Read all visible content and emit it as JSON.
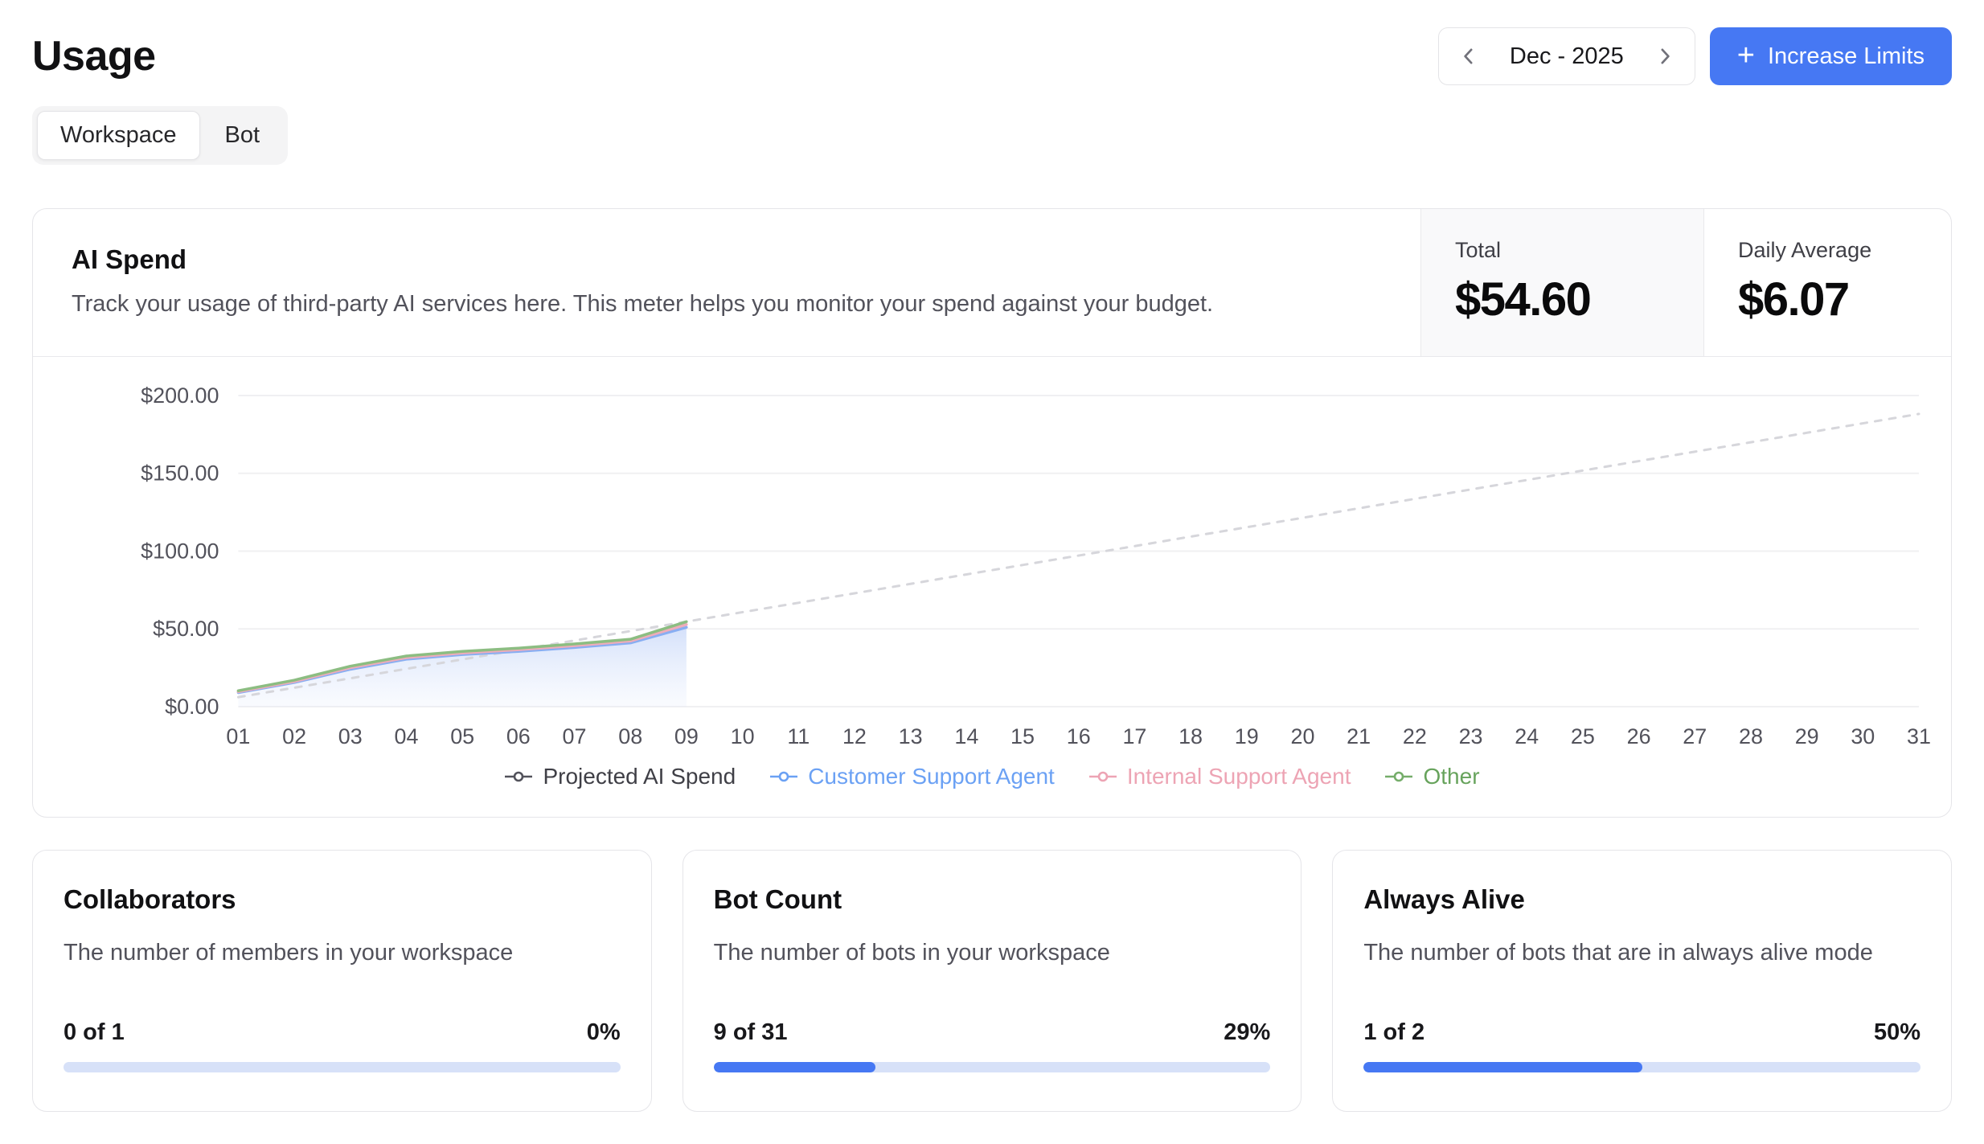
{
  "page": {
    "title": "Usage"
  },
  "colors": {
    "accent": "#4678f3",
    "progress_track": "#d7e1f8",
    "card_border": "#e5e5e9",
    "muted_text": "#52525b",
    "stat_bg": "#f9f9fa"
  },
  "header": {
    "date_nav": {
      "label": "Dec - 2025",
      "prev_icon": "chevron-left",
      "next_icon": "chevron-right"
    },
    "increase_limits": {
      "label": "Increase Limits",
      "plus_icon": "+"
    }
  },
  "tabs": [
    {
      "label": "Workspace",
      "active": true
    },
    {
      "label": "Bot",
      "active": false
    }
  ],
  "ai_spend": {
    "title": "AI Spend",
    "description": "Track your usage of third-party AI services here. This meter helps you monitor your spend against your budget.",
    "total_label": "Total",
    "total_value": "$54.60",
    "daily_avg_label": "Daily Average",
    "daily_avg_value": "$6.07"
  },
  "chart_data": {
    "type": "line",
    "title": "AI Spend",
    "xlabel": "",
    "ylabel": "",
    "ylim": [
      0,
      200
    ],
    "grid": true,
    "legend_position": "bottom",
    "x_labels": [
      "01",
      "02",
      "03",
      "04",
      "05",
      "06",
      "07",
      "08",
      "09",
      "10",
      "11",
      "12",
      "13",
      "14",
      "15",
      "16",
      "17",
      "18",
      "19",
      "20",
      "21",
      "22",
      "23",
      "24",
      "25",
      "26",
      "27",
      "28",
      "29",
      "30",
      "31"
    ],
    "y_ticks": [
      {
        "value": 0,
        "label": "$0.00"
      },
      {
        "value": 50,
        "label": "$50.00"
      },
      {
        "value": 100,
        "label": "$100.00"
      },
      {
        "value": 150,
        "label": "$150.00"
      },
      {
        "value": 200,
        "label": "$200.00"
      }
    ],
    "series": [
      {
        "name": "Projected AI Spend",
        "style": "dashed",
        "color": "#d6d6db",
        "values": [
          6.07,
          12.14,
          18.21,
          24.28,
          30.35,
          36.42,
          42.49,
          48.56,
          54.63,
          60.7,
          66.77,
          72.84,
          78.91,
          84.98,
          91.05,
          97.12,
          103.19,
          109.26,
          115.33,
          121.4,
          127.47,
          133.54,
          139.61,
          145.68,
          151.75,
          157.82,
          163.89,
          169.96,
          176.03,
          182.1,
          188.17
        ]
      },
      {
        "name": "Customer Support Agent",
        "style": "solid",
        "color": "#88aef2",
        "area": true,
        "values": [
          9.0,
          15.5,
          24.0,
          30.5,
          33.5,
          35.5,
          38.0,
          41.0,
          51.0
        ]
      },
      {
        "name": "Internal Support Agent",
        "style": "solid",
        "color": "#efacba",
        "values": [
          9.6,
          16.2,
          25.0,
          31.5,
          34.5,
          36.6,
          39.2,
          42.2,
          52.8
        ]
      },
      {
        "name": "Other",
        "style": "solid",
        "color": "#8cbd82",
        "values": [
          10.2,
          17.0,
          26.0,
          32.5,
          35.5,
          37.6,
          40.3,
          43.3,
          54.6
        ]
      }
    ],
    "legend": [
      {
        "label": "Projected AI Spend",
        "color": "#52525b",
        "text_color": "#3f3f46"
      },
      {
        "label": "Customer Support Agent",
        "color": "#6ba1f4",
        "text_color": "#6ba1f4"
      },
      {
        "label": "Internal Support Agent",
        "color": "#eda4b4",
        "text_color": "#eda4b4"
      },
      {
        "label": "Other",
        "color": "#75ad6a",
        "text_color": "#67a35c"
      }
    ]
  },
  "cards": [
    {
      "title": "Collaborators",
      "description": "The number of members in your workspace",
      "count": "0 of 1",
      "percent": "0%",
      "value": 0
    },
    {
      "title": "Bot Count",
      "description": "The number of bots in your workspace",
      "count": "9 of 31",
      "percent": "29%",
      "value": 29
    },
    {
      "title": "Always Alive",
      "description": "The number of bots that are in always alive mode",
      "count": "1 of 2",
      "percent": "50%",
      "value": 50
    }
  ]
}
